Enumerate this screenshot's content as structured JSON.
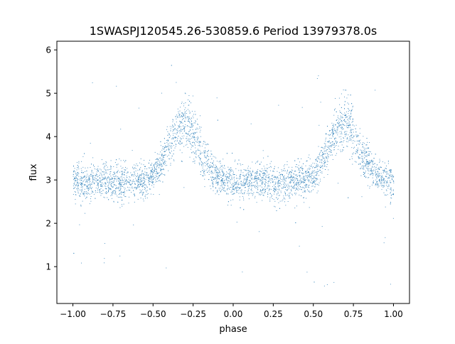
{
  "chart_data": {
    "type": "scatter",
    "title": "1SWASPJ120545.26-530859.6 Period 13979378.0s",
    "xlabel": "phase",
    "ylabel": "flux",
    "xlim": [
      -1.1,
      1.1
    ],
    "ylim": [
      0.15,
      6.2
    ],
    "xticks": [
      -1.0,
      -0.75,
      -0.5,
      -0.25,
      0.0,
      0.25,
      0.5,
      0.75,
      1.0
    ],
    "xtick_labels": [
      "−1.00",
      "−0.75",
      "−0.50",
      "−0.25",
      "0.00",
      "0.25",
      "0.50",
      "0.75",
      "1.00"
    ],
    "yticks": [
      1,
      2,
      3,
      4,
      5,
      6
    ],
    "ytick_labels": [
      "1",
      "2",
      "3",
      "4",
      "5",
      "6"
    ],
    "grid": false,
    "legend": "none",
    "marker_color": "#1f77b4",
    "profile": {
      "description": "phase-folded light curve repeated over two cycles",
      "phase": [
        -1.0,
        -0.95,
        -0.9,
        -0.85,
        -0.8,
        -0.75,
        -0.7,
        -0.65,
        -0.6,
        -0.55,
        -0.5,
        -0.45,
        -0.4,
        -0.35,
        -0.3,
        -0.25,
        -0.2,
        -0.15,
        -0.1,
        -0.05,
        0.0
      ],
      "median_flux": [
        3.0,
        2.9,
        2.95,
        3.0,
        3.0,
        2.95,
        2.9,
        3.0,
        3.0,
        3.0,
        3.1,
        3.4,
        3.8,
        4.2,
        4.4,
        4.0,
        3.6,
        3.3,
        3.1,
        3.0,
        2.95
      ],
      "scatter": [
        0.35,
        0.4,
        0.35,
        0.35,
        0.35,
        0.4,
        0.45,
        0.35,
        0.35,
        0.35,
        0.35,
        0.4,
        0.45,
        0.55,
        0.6,
        0.55,
        0.45,
        0.4,
        0.35,
        0.35,
        0.4
      ]
    }
  }
}
